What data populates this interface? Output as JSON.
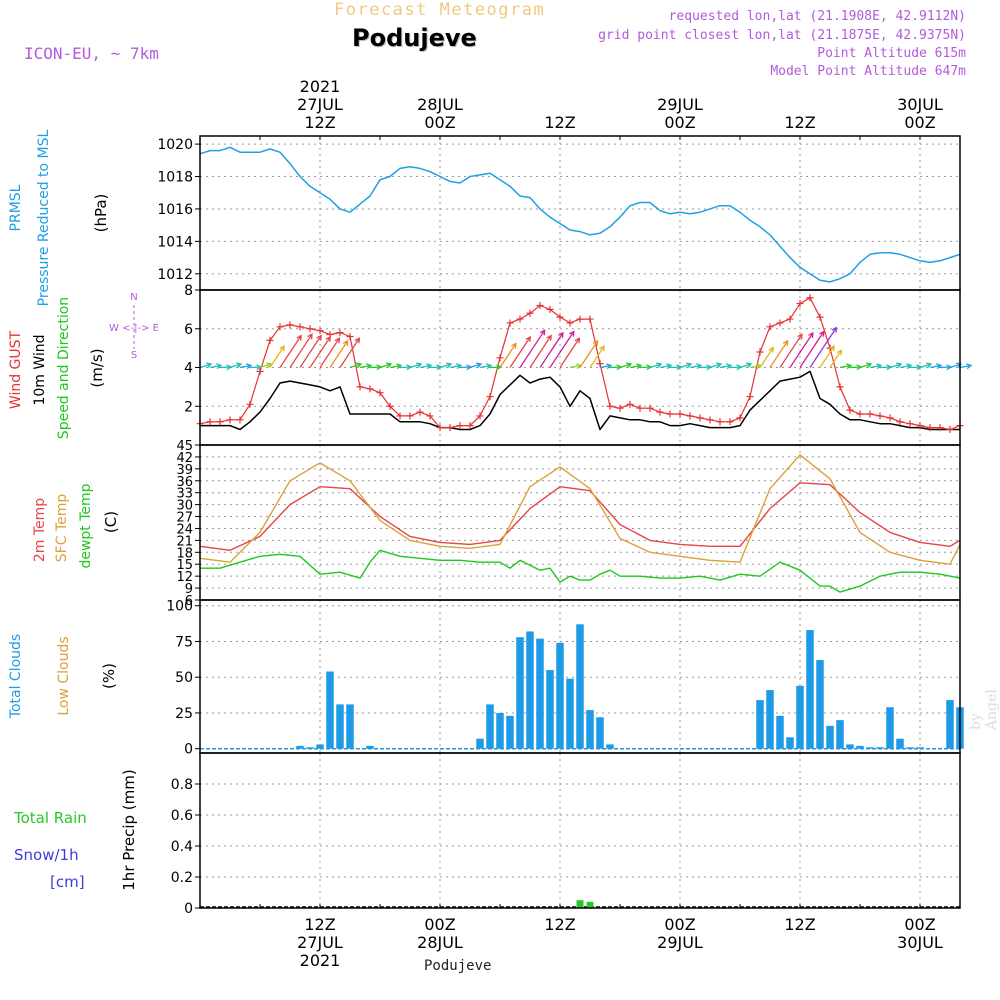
{
  "header": {
    "title": "Forecast Meteogram",
    "location": "Podujeve",
    "model": "ICON-EU, ~ 7km",
    "requested": "requested lon,lat (21.1908E, 42.9112N)",
    "gridpoint": "grid point closest lon,lat (21.1875E, 42.9375N)",
    "point_alt": "Point Altitude 615m",
    "model_alt": "Model Point Altitude 647m",
    "footer": "Podujeve",
    "credit": "by Angel"
  },
  "time_axis": {
    "top_year": "2021",
    "bottom_year": "2021",
    "ticks": [
      {
        "t": 12,
        "top": "12Z",
        "date": "27JUL"
      },
      {
        "t": 24,
        "top": "00Z",
        "date": "28JUL"
      },
      {
        "t": 36,
        "top": "12Z",
        "date": ""
      },
      {
        "t": 48,
        "top": "00Z",
        "date": "29JUL"
      },
      {
        "t": 60,
        "top": "12Z",
        "date": ""
      },
      {
        "t": 72,
        "top": "00Z",
        "date": "30JUL"
      }
    ],
    "t_min": 0,
    "t_max": 76
  },
  "panel_labels": {
    "pressure": [
      "PRMSL",
      "Pressure Reduced to MSL",
      "(hPa)"
    ],
    "wind": [
      "Wind GUST",
      "10m Wind",
      "Speed and Direction",
      "(m/s)"
    ],
    "compass": [
      "N",
      "W <-|-> E",
      "S"
    ],
    "temp": [
      "2m Temp",
      "SFC Temp",
      "dewpt Temp",
      "(C)"
    ],
    "clouds": [
      "Total Clouds",
      "Low Clouds",
      "(%)"
    ],
    "precip": [
      "Total  Rain",
      "Snow/1h",
      "[cm]",
      "1hr Precip (mm)"
    ]
  },
  "colors": {
    "pressure": "#1ea0e6",
    "gust": "#e63232",
    "wind": "#000000",
    "temp2m": "#e64646",
    "sfc": "#dca03c",
    "dew": "#1ec81e",
    "clouds": "#1e9be6",
    "rain": "#28c828",
    "label_purple": "#b45adc",
    "label_blue": "#3c3cdc",
    "title_orange": "#f0c882"
  },
  "chart_data": [
    {
      "type": "line",
      "id": "pressure",
      "ylim": [
        1011,
        1020.5
      ],
      "yticks": [
        1012,
        1014,
        1016,
        1018,
        1020
      ],
      "series": [
        {
          "name": "PRMSL",
          "x": [
            0,
            1,
            2,
            3,
            4,
            5,
            6,
            7,
            8,
            9,
            10,
            11,
            12,
            13,
            14,
            15,
            16,
            17,
            18,
            19,
            20,
            21,
            22,
            23,
            24,
            25,
            26,
            27,
            28,
            29,
            30,
            31,
            32,
            33,
            34,
            35,
            36,
            37,
            38,
            39,
            40,
            41,
            42,
            43,
            44,
            45,
            46,
            47,
            48,
            49,
            50,
            51,
            52,
            53,
            54,
            55,
            56,
            57,
            58,
            59,
            60,
            61,
            62,
            63,
            64,
            65,
            66,
            67,
            68,
            69,
            70,
            71,
            72,
            73,
            74,
            75,
            76
          ],
          "values": [
            1019.4,
            1019.6,
            1019.6,
            1019.8,
            1019.5,
            1019.5,
            1019.5,
            1019.7,
            1019.5,
            1018.8,
            1018.0,
            1017.4,
            1017.0,
            1016.6,
            1016.0,
            1015.8,
            1016.3,
            1016.8,
            1017.8,
            1018.0,
            1018.5,
            1018.6,
            1018.5,
            1018.3,
            1018.0,
            1017.7,
            1017.6,
            1018.0,
            1018.1,
            1018.2,
            1017.8,
            1017.4,
            1016.8,
            1016.7,
            1016.0,
            1015.5,
            1015.1,
            1014.7,
            1014.6,
            1014.4,
            1014.5,
            1014.9,
            1015.5,
            1016.2,
            1016.4,
            1016.4,
            1015.9,
            1015.7,
            1015.8,
            1015.7,
            1015.8,
            1016.0,
            1016.2,
            1016.2,
            1015.8,
            1015.3,
            1014.9,
            1014.4,
            1013.7,
            1013.0,
            1012.4,
            1012.0,
            1011.6,
            1011.5,
            1011.7,
            1012.0,
            1012.7,
            1013.2,
            1013.3,
            1013.3,
            1013.2,
            1013.0,
            1012.8,
            1012.7,
            1012.8,
            1013.0,
            1013.2
          ]
        }
      ]
    },
    {
      "type": "line",
      "id": "wind",
      "ylim": [
        0,
        8
      ],
      "yticks": [
        2,
        4,
        6,
        8
      ],
      "wind_arrow_row": 4,
      "series": [
        {
          "name": "Wind GUST",
          "x": [
            0,
            1,
            2,
            3,
            4,
            5,
            6,
            7,
            8,
            9,
            10,
            11,
            12,
            13,
            14,
            15,
            16,
            17,
            18,
            19,
            20,
            21,
            22,
            23,
            24,
            25,
            26,
            27,
            28,
            29,
            30,
            31,
            32,
            33,
            34,
            35,
            36,
            37,
            38,
            39,
            40,
            41,
            42,
            43,
            44,
            45,
            46,
            47,
            48,
            49,
            50,
            51,
            52,
            53,
            54,
            55,
            56,
            57,
            58,
            59,
            60,
            61,
            62,
            63,
            64,
            65,
            66,
            67,
            68,
            69,
            70,
            71,
            72,
            73,
            74,
            75,
            76
          ],
          "values": [
            1.1,
            1.2,
            1.2,
            1.3,
            1.3,
            2.1,
            3.8,
            5.4,
            6.1,
            6.2,
            6.1,
            6.0,
            5.9,
            5.7,
            5.8,
            5.6,
            3.0,
            2.9,
            2.7,
            2.0,
            1.5,
            1.5,
            1.7,
            1.5,
            0.9,
            0.9,
            1.0,
            1.0,
            1.5,
            2.5,
            4.5,
            6.3,
            6.5,
            6.8,
            7.2,
            7.0,
            6.6,
            6.3,
            6.5,
            6.5,
            4.2,
            2.0,
            1.9,
            2.1,
            1.9,
            1.9,
            1.7,
            1.6,
            1.6,
            1.5,
            1.4,
            1.3,
            1.2,
            1.2,
            1.4,
            2.5,
            4.8,
            6.1,
            6.3,
            6.5,
            7.3,
            7.6,
            6.6,
            5.0,
            3.0,
            1.8,
            1.6,
            1.6,
            1.5,
            1.4,
            1.2,
            1.1,
            1.0,
            0.9,
            0.9,
            0.8,
            1.0
          ]
        },
        {
          "name": "10m Wind",
          "x": [
            0,
            1,
            2,
            3,
            4,
            5,
            6,
            7,
            8,
            9,
            10,
            11,
            12,
            13,
            14,
            15,
            16,
            17,
            18,
            19,
            20,
            21,
            22,
            23,
            24,
            25,
            26,
            27,
            28,
            29,
            30,
            31,
            32,
            33,
            34,
            35,
            36,
            37,
            38,
            39,
            40,
            41,
            42,
            43,
            44,
            45,
            46,
            47,
            48,
            49,
            50,
            51,
            52,
            53,
            54,
            55,
            56,
            57,
            58,
            59,
            60,
            61,
            62,
            63,
            64,
            65,
            66,
            67,
            68,
            69,
            70,
            71,
            72,
            73,
            74,
            75,
            76
          ],
          "values": [
            1.0,
            1.0,
            1.0,
            1.0,
            0.8,
            1.2,
            1.7,
            2.4,
            3.2,
            3.3,
            3.2,
            3.1,
            3.0,
            2.8,
            3.0,
            1.6,
            1.6,
            1.6,
            1.6,
            1.6,
            1.2,
            1.2,
            1.2,
            1.1,
            0.9,
            0.9,
            0.8,
            0.8,
            1.0,
            1.6,
            2.6,
            3.1,
            3.6,
            3.2,
            3.4,
            3.5,
            3.0,
            2.0,
            2.8,
            2.4,
            0.8,
            1.5,
            1.4,
            1.3,
            1.3,
            1.2,
            1.2,
            1.0,
            1.0,
            1.1,
            1.0,
            0.9,
            0.9,
            0.9,
            1.0,
            1.8,
            2.3,
            2.8,
            3.3,
            3.4,
            3.5,
            3.8,
            2.4,
            2.1,
            1.6,
            1.3,
            1.3,
            1.2,
            1.1,
            1.1,
            1.0,
            0.9,
            0.9,
            0.8,
            0.8,
            0.8,
            0.8
          ]
        }
      ]
    },
    {
      "type": "line",
      "id": "temperature",
      "ylim": [
        6,
        45
      ],
      "yticks": [
        6,
        9,
        12,
        15,
        18,
        21,
        24,
        27,
        30,
        33,
        36,
        39,
        42,
        45
      ],
      "series": [
        {
          "name": "2m Temp",
          "x": [
            0,
            3,
            6,
            9,
            12,
            15,
            18,
            21,
            24,
            27,
            30,
            33,
            36,
            39,
            42,
            45,
            48,
            51,
            54,
            57,
            60,
            63,
            66,
            69,
            72,
            75,
            76
          ],
          "values": [
            19.5,
            18.5,
            22,
            30,
            34.5,
            34,
            27,
            22,
            20.5,
            20,
            21,
            29,
            34.5,
            33.5,
            25,
            21,
            20,
            19.5,
            19.5,
            29,
            35.5,
            35,
            28,
            23,
            20.5,
            19.5,
            21
          ]
        },
        {
          "name": "SFC Temp",
          "x": [
            0,
            3,
            6,
            9,
            12,
            15,
            18,
            21,
            24,
            27,
            30,
            33,
            36,
            39,
            42,
            45,
            48,
            51,
            54,
            57,
            60,
            63,
            66,
            69,
            72,
            75,
            76
          ],
          "values": [
            16.5,
            15.5,
            23,
            36,
            40.5,
            36,
            26,
            21,
            19.5,
            19,
            20,
            34.5,
            39.5,
            34,
            21.5,
            18,
            17,
            16,
            15.5,
            34,
            42.5,
            36.5,
            23,
            18,
            16,
            15,
            20
          ]
        },
        {
          "name": "dewpt Temp",
          "x": [
            0,
            2,
            4,
            6,
            8,
            10,
            12,
            14,
            16,
            17,
            18,
            20,
            22,
            24,
            26,
            28,
            30,
            31,
            32,
            34,
            35,
            36,
            37,
            38,
            39,
            40,
            41,
            42,
            44,
            46,
            48,
            50,
            52,
            54,
            56,
            58,
            60,
            62,
            63,
            64,
            66,
            68,
            70,
            72,
            74,
            76
          ],
          "values": [
            14,
            14,
            15.5,
            17,
            17.5,
            17,
            12.5,
            13,
            11.5,
            15.5,
            18.5,
            17,
            16.5,
            16,
            16,
            15.5,
            15.5,
            14,
            16,
            13.5,
            14,
            10.5,
            12,
            11,
            11,
            12.5,
            13.5,
            12,
            12,
            11.5,
            11.5,
            12,
            11,
            12.5,
            12,
            15.5,
            13.5,
            9.5,
            9.5,
            8,
            9.5,
            12,
            13,
            13,
            12.5,
            11.5
          ]
        }
      ]
    },
    {
      "type": "bar",
      "id": "clouds",
      "ylim": [
        -3,
        104
      ],
      "yticks": [
        0,
        25,
        50,
        75,
        100
      ],
      "x": [
        10,
        11,
        12,
        13,
        14,
        15,
        17,
        28,
        29,
        30,
        31,
        32,
        33,
        34,
        35,
        36,
        37,
        38,
        39,
        40,
        41,
        56,
        57,
        58,
        59,
        60,
        61,
        62,
        63,
        64,
        65,
        66,
        67,
        68,
        69,
        70,
        71,
        72,
        75,
        76
      ],
      "values": [
        2,
        1,
        3,
        54,
        31,
        31,
        2,
        7,
        31,
        25,
        23,
        78,
        82,
        77,
        55,
        74,
        49,
        87,
        27,
        22,
        3,
        34,
        41,
        23,
        8,
        44,
        83,
        62,
        16,
        20,
        3,
        2,
        1,
        1,
        29,
        7,
        1,
        1,
        34,
        29
      ]
    },
    {
      "type": "bar",
      "id": "precip",
      "ylim": [
        0,
        1.0
      ],
      "yticks": [
        0,
        0.2,
        0.4,
        0.6,
        0.8
      ],
      "x": [
        38,
        39
      ],
      "values": [
        0.05,
        0.04
      ]
    }
  ]
}
